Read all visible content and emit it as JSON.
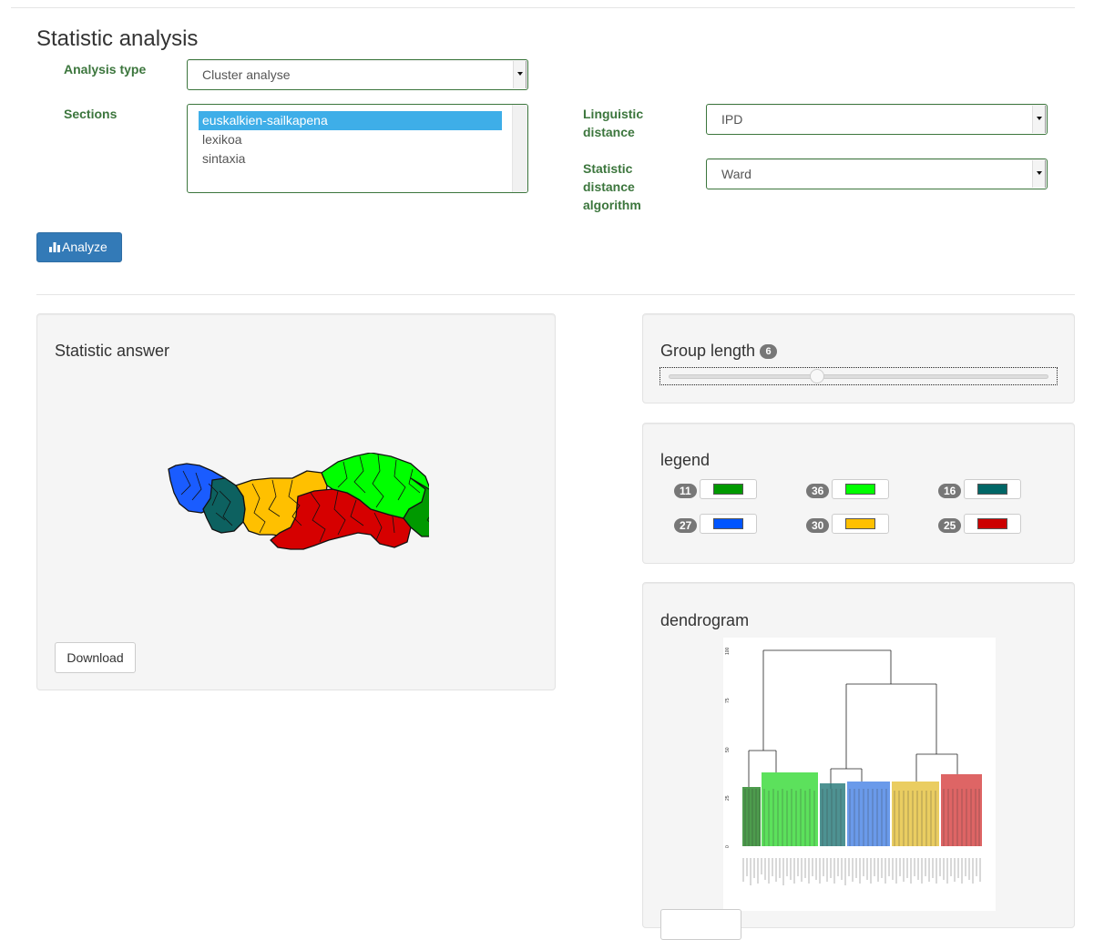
{
  "page": {
    "title": "Statistic analysis"
  },
  "form": {
    "analysis_type": {
      "label": "Analysis type",
      "value": "Cluster analyse"
    },
    "sections": {
      "label": "Sections",
      "options": [
        "euskalkien-sailkapena",
        "lexikoa",
        "sintaxia"
      ],
      "selected": "euskalkien-sailkapena"
    },
    "linguistic_distance": {
      "label_line1": "Linguistic",
      "label_line2": "distance",
      "value": "IPD"
    },
    "algorithm": {
      "label_line1": "Statistic",
      "label_line2": "distance",
      "label_line3": "algorithm",
      "value": "Ward"
    },
    "analyze_button": "Analyze"
  },
  "answer_panel": {
    "title": "Statistic answer",
    "download_label": "Download"
  },
  "group_panel": {
    "title": "Group length",
    "value": "6",
    "slider_fraction": 0.39
  },
  "legend_panel": {
    "title": "legend",
    "items": [
      {
        "count": "11",
        "color": "#009900"
      },
      {
        "count": "36",
        "color": "#00ff00"
      },
      {
        "count": "16",
        "color": "#006666"
      },
      {
        "count": "27",
        "color": "#0055ff"
      },
      {
        "count": "30",
        "color": "#ffc000"
      },
      {
        "count": "25",
        "color": "#cc0000"
      }
    ]
  },
  "dendrogram_panel": {
    "title": "dendrogram",
    "y_ticks": [
      "100",
      "75",
      "50",
      "25",
      "0"
    ]
  }
}
